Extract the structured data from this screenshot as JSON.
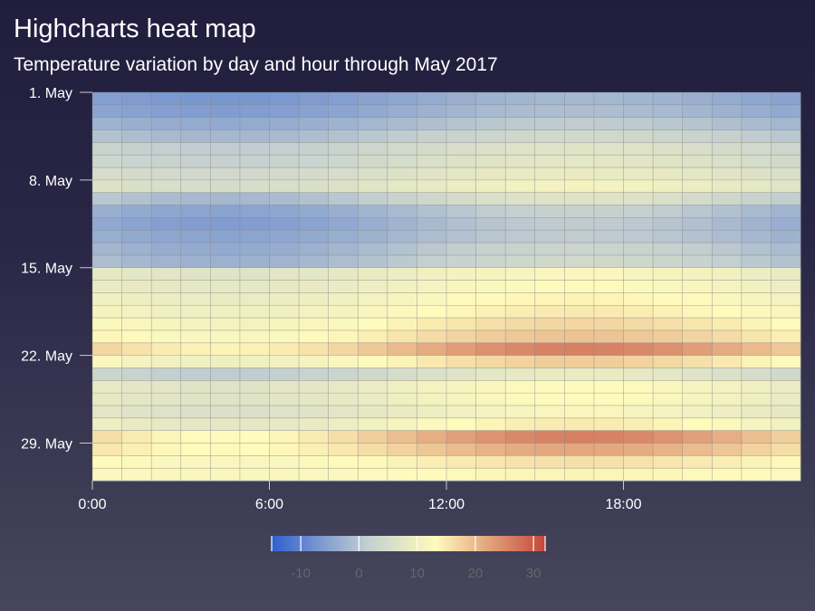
{
  "chart_data": {
    "type": "heatmap",
    "title": "Highcharts heat map",
    "subtitle": "Temperature variation by day and hour through May 2017",
    "x_ticks": [
      "0:00",
      "6:00",
      "12:00",
      "18:00"
    ],
    "x_tick_hours": [
      0,
      6,
      12,
      18
    ],
    "x_range_hours": [
      0,
      24
    ],
    "y_ticks": [
      "1. May",
      "8. May",
      "15. May",
      "22. May",
      "29. May"
    ],
    "y_tick_days": [
      1,
      8,
      15,
      22,
      29
    ],
    "y_range_days": [
      1,
      31
    ],
    "colorbar": {
      "min": -15,
      "max": 32,
      "ticks": [
        -10,
        0,
        10,
        20,
        30
      ]
    },
    "color_stops": [
      "#3060cf",
      "#c4cfd0",
      "#fffbbc",
      "#c4463a"
    ],
    "color_stop_positions": [
      0,
      0.35,
      0.6,
      1
    ],
    "grid_color": "#888888",
    "row_profile": [
      [
        1,
        -2,
        -7
      ],
      [
        2,
        -1,
        -6
      ],
      [
        3,
        1,
        -4
      ],
      [
        4,
        4,
        -2
      ],
      [
        5,
        7,
        1
      ],
      [
        6,
        8,
        2
      ],
      [
        7,
        9,
        4
      ],
      [
        8,
        11,
        5
      ],
      [
        9,
        7,
        -2
      ],
      [
        10,
        2,
        -5
      ],
      [
        11,
        1,
        -6
      ],
      [
        12,
        1,
        -5
      ],
      [
        13,
        3,
        -4
      ],
      [
        14,
        4,
        -3
      ],
      [
        15,
        12,
        7
      ],
      [
        16,
        13,
        8
      ],
      [
        17,
        14,
        9
      ],
      [
        18,
        15,
        10
      ],
      [
        19,
        17,
        11
      ],
      [
        20,
        19,
        12
      ],
      [
        21,
        26,
        14
      ],
      [
        22,
        18,
        10
      ],
      [
        23,
        9,
        1
      ],
      [
        24,
        13,
        7
      ],
      [
        25,
        13,
        7
      ],
      [
        26,
        12,
        6
      ],
      [
        27,
        15,
        8
      ],
      [
        28,
        26,
        13
      ],
      [
        29,
        22,
        13
      ],
      [
        30,
        16,
        12
      ],
      [
        31,
        14,
        12
      ]
    ]
  }
}
